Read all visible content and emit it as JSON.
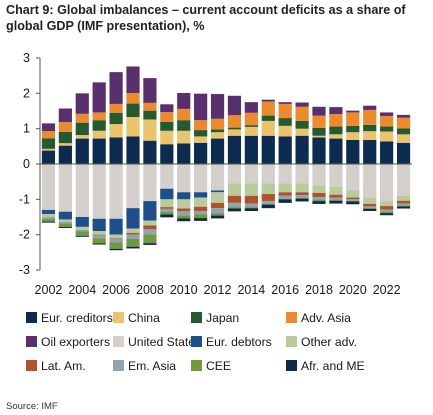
{
  "title": "Chart 9: Global imbalances – current account deficits as a share of global GDP (IMF presentation), %",
  "source": "Source: IMF",
  "chart_data": {
    "type": "bar",
    "stacked": true,
    "grid": false,
    "legend_position": "bottom",
    "ylim": [
      -3,
      3
    ],
    "yticks": [
      3,
      2,
      1,
      0,
      -1,
      -2,
      -3
    ],
    "categories": [
      "2002",
      "2003",
      "2004",
      "2005",
      "2006",
      "2007",
      "2008",
      "2009",
      "2010",
      "2011",
      "2012",
      "2013",
      "2014",
      "2015",
      "2016",
      "2017",
      "2018",
      "2019",
      "2020",
      "2021",
      "2022",
      "2023"
    ],
    "xtick_labels": [
      "2002",
      "2004",
      "2006",
      "2008",
      "2010",
      "2012",
      "2014",
      "2016",
      "2018",
      "2020",
      "2022"
    ],
    "series": [
      {
        "name": "Eur. creditors",
        "color": "#0d2b50",
        "values": [
          0.38,
          0.52,
          0.72,
          0.72,
          0.75,
          0.78,
          0.66,
          0.56,
          0.58,
          0.6,
          0.72,
          0.8,
          0.8,
          0.8,
          0.78,
          0.8,
          0.75,
          0.72,
          0.68,
          0.68,
          0.64,
          0.6
        ]
      },
      {
        "name": "China",
        "color": "#e9c46a",
        "values": [
          0.05,
          0.07,
          0.1,
          0.22,
          0.38,
          0.55,
          0.6,
          0.38,
          0.36,
          0.18,
          0.18,
          0.18,
          0.25,
          0.42,
          0.3,
          0.2,
          0.05,
          0.12,
          0.22,
          0.25,
          0.28,
          0.24
        ]
      },
      {
        "name": "Japan",
        "color": "#245a2f",
        "values": [
          0.3,
          0.32,
          0.35,
          0.3,
          0.32,
          0.38,
          0.25,
          0.25,
          0.3,
          0.18,
          0.08,
          0.05,
          0.05,
          0.15,
          0.22,
          0.22,
          0.22,
          0.22,
          0.18,
          0.18,
          0.14,
          0.17
        ]
      },
      {
        "name": "Adv. Asia",
        "color": "#ec8a2c",
        "values": [
          0.2,
          0.28,
          0.25,
          0.22,
          0.25,
          0.3,
          0.22,
          0.28,
          0.32,
          0.28,
          0.3,
          0.35,
          0.35,
          0.4,
          0.4,
          0.4,
          0.35,
          0.35,
          0.38,
          0.42,
          0.3,
          0.3
        ]
      },
      {
        "name": "Oil exporters",
        "color": "#5a2f6e",
        "values": [
          0.22,
          0.38,
          0.58,
          0.85,
          0.9,
          0.75,
          0.7,
          0.22,
          0.45,
          0.75,
          0.7,
          0.55,
          0.3,
          0.05,
          0.05,
          0.12,
          0.25,
          0.2,
          0.05,
          0.12,
          0.1,
          0.08
        ]
      }
    ],
    "negative_series": [
      {
        "name": "United States",
        "color": "#d3cfca",
        "values": [
          -1.3,
          -1.35,
          -1.5,
          -1.55,
          -1.55,
          -1.25,
          -1.05,
          -0.7,
          -0.8,
          -0.8,
          -0.75,
          -0.55,
          -0.55,
          -0.55,
          -0.55,
          -0.55,
          -0.6,
          -0.65,
          -0.75,
          -0.95,
          -1.05,
          -0.9
        ]
      },
      {
        "name": "Eur. debtors",
        "color": "#1f4e8c",
        "values": [
          -0.12,
          -0.22,
          -0.28,
          -0.35,
          -0.45,
          -0.58,
          -0.55,
          -0.3,
          -0.2,
          -0.15,
          -0.05,
          0,
          0,
          0,
          0,
          0,
          0,
          0,
          0,
          0,
          0,
          0
        ]
      },
      {
        "name": "Other adv.",
        "color": "#b7cc9a",
        "values": [
          -0.08,
          -0.06,
          -0.08,
          -0.1,
          -0.1,
          -0.12,
          -0.14,
          -0.22,
          -0.26,
          -0.26,
          -0.3,
          -0.35,
          -0.35,
          -0.3,
          -0.25,
          -0.25,
          -0.22,
          -0.22,
          -0.2,
          -0.18,
          -0.14,
          -0.14
        ]
      },
      {
        "name": "Lat. Am.",
        "color": "#b0532a",
        "values": [
          0,
          0,
          0,
          -0.02,
          -0.02,
          -0.05,
          -0.1,
          -0.05,
          -0.08,
          -0.12,
          -0.15,
          -0.2,
          -0.22,
          -0.2,
          -0.1,
          -0.08,
          -0.12,
          -0.08,
          -0.05,
          -0.07,
          -0.1,
          -0.08
        ]
      },
      {
        "name": "Em. Asia",
        "color": "#8fa3b0",
        "values": [
          -0.05,
          -0.05,
          -0.05,
          -0.08,
          -0.1,
          -0.12,
          -0.15,
          -0.08,
          -0.12,
          -0.1,
          -0.15,
          -0.12,
          -0.1,
          -0.08,
          -0.08,
          -0.08,
          -0.08,
          -0.06,
          -0.04,
          -0.04,
          -0.06,
          -0.05
        ]
      },
      {
        "name": "CEE",
        "color": "#6f9a3c",
        "values": [
          -0.08,
          -0.1,
          -0.12,
          -0.15,
          -0.18,
          -0.22,
          -0.25,
          -0.08,
          -0.08,
          -0.1,
          -0.06,
          -0.04,
          -0.03,
          -0.02,
          -0.02,
          -0.02,
          -0.03,
          -0.03,
          -0.02,
          -0.03,
          -0.04,
          -0.03
        ]
      },
      {
        "name": "Afr. and ME",
        "color": "#0f2a44",
        "values": [
          -0.03,
          -0.03,
          -0.03,
          -0.03,
          -0.04,
          -0.05,
          -0.05,
          -0.08,
          -0.08,
          -0.08,
          -0.08,
          -0.08,
          -0.08,
          -0.1,
          -0.1,
          -0.08,
          -0.08,
          -0.08,
          -0.08,
          -0.06,
          -0.06,
          -0.06
        ]
      }
    ]
  }
}
